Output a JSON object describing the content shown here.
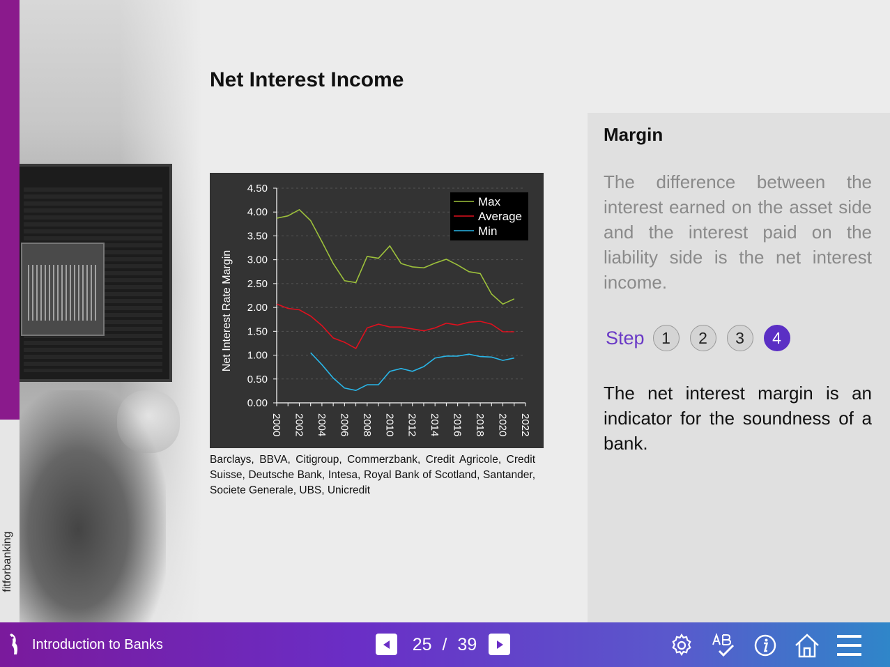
{
  "brand": {
    "vertical_label": "fitforbanking"
  },
  "page": {
    "title": "Net Interest Income"
  },
  "chart_caption": "Barclays, BBVA, Citigroup, Commerzbank, Credit Agricole, Credit Suisse, Deutsche Bank, Intesa, Royal Bank of Scotland, Santander, Societe Generale, UBS, Unicredit",
  "side_panel": {
    "heading": "Margin",
    "text": "The difference between the interest earned on the asset side and the interest paid on the liability side is the net interest income.",
    "steps_label": "Step",
    "steps": [
      "1",
      "2",
      "3",
      "4"
    ],
    "active_step": "4",
    "text2": "The net interest margin is an indicator for the soundness of a bank."
  },
  "bottom_bar": {
    "course_title": "Introduction to Banks",
    "current_page": "25",
    "separator": "/",
    "total_pages": "39",
    "icons": [
      "settings-icon",
      "spellcheck-icon",
      "info-icon",
      "home-icon",
      "menu-icon"
    ]
  },
  "colors": {
    "accent_purple": "#8a1a8c",
    "step_active": "#5b2fc4",
    "max_line": "#9dc13b",
    "avg_line": "#e0101e",
    "min_line": "#29b6e8",
    "chart_bg": "#333333"
  },
  "chart_data": {
    "type": "line",
    "title": "",
    "xlabel": "",
    "ylabel": "Net Interest Rate Margin",
    "xlim": [
      2000,
      2022
    ],
    "ylim": [
      0,
      4.5
    ],
    "x_ticks": [
      "2000",
      "2002",
      "2004",
      "2006",
      "2008",
      "2010",
      "2012",
      "2014",
      "2016",
      "2018",
      "2020",
      "2022"
    ],
    "y_ticks": [
      "0.00",
      "0.50",
      "1.00",
      "1.50",
      "2.00",
      "2.50",
      "3.00",
      "3.50",
      "4.00",
      "4.50"
    ],
    "grid": true,
    "legend": "top-right",
    "series": [
      {
        "name": "Max",
        "color": "#9dc13b",
        "x": [
          2000,
          2001,
          2002,
          2003,
          2004,
          2005,
          2006,
          2007,
          2008,
          2009,
          2010,
          2011,
          2012,
          2013,
          2014,
          2015,
          2016,
          2017,
          2018,
          2019,
          2020,
          2021
        ],
        "values": [
          3.87,
          3.92,
          4.05,
          3.82,
          3.38,
          2.92,
          2.56,
          2.52,
          3.07,
          3.03,
          3.29,
          2.92,
          2.85,
          2.83,
          2.93,
          3.01,
          2.89,
          2.75,
          2.71,
          2.28,
          2.07,
          2.18
        ]
      },
      {
        "name": "Average",
        "color": "#e0101e",
        "x": [
          2000,
          2001,
          2002,
          2003,
          2004,
          2005,
          2006,
          2007,
          2008,
          2009,
          2010,
          2011,
          2012,
          2013,
          2014,
          2015,
          2016,
          2017,
          2018,
          2019,
          2020,
          2021
        ],
        "values": [
          2.07,
          1.98,
          1.95,
          1.82,
          1.62,
          1.36,
          1.27,
          1.14,
          1.57,
          1.65,
          1.59,
          1.59,
          1.55,
          1.51,
          1.57,
          1.67,
          1.63,
          1.69,
          1.71,
          1.65,
          1.49,
          1.49
        ]
      },
      {
        "name": "Min",
        "color": "#29b6e8",
        "x": [
          2003,
          2004,
          2005,
          2006,
          2007,
          2008,
          2009,
          2010,
          2011,
          2012,
          2013,
          2014,
          2015,
          2016,
          2017,
          2018,
          2019,
          2020,
          2021
        ],
        "values": [
          1.05,
          0.8,
          0.52,
          0.31,
          0.26,
          0.38,
          0.38,
          0.66,
          0.72,
          0.66,
          0.76,
          0.94,
          0.98,
          0.98,
          1.02,
          0.97,
          0.96,
          0.89,
          0.94
        ]
      }
    ]
  }
}
